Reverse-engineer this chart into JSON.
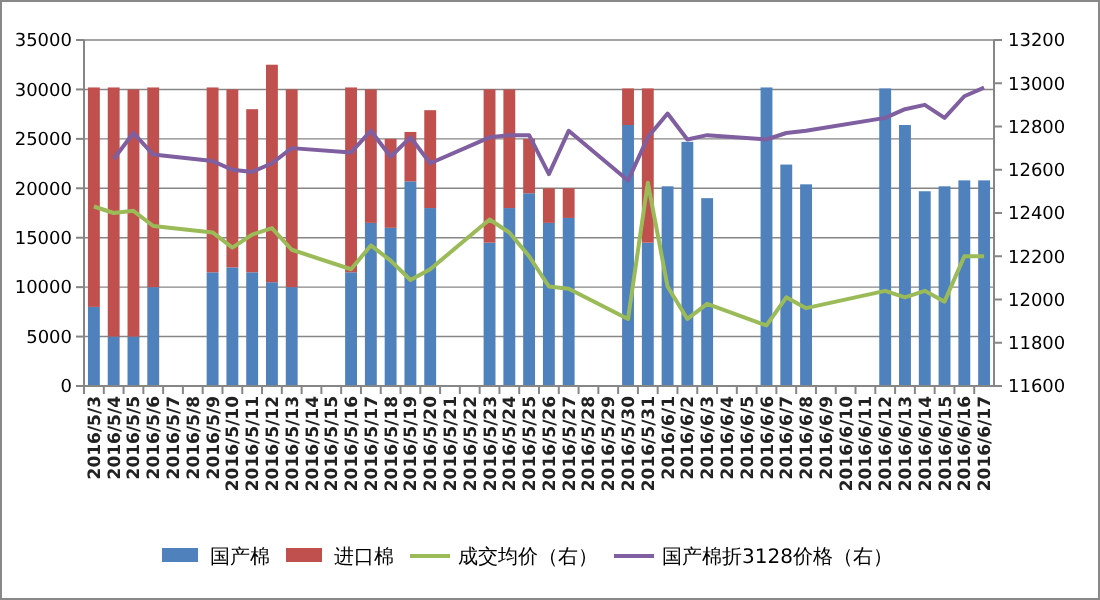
{
  "chart_data": {
    "type": "bar",
    "stacked": true,
    "categories": [
      "2016/5/3",
      "2016/5/4",
      "2016/5/5",
      "2016/5/6",
      "2016/5/7",
      "2016/5/8",
      "2016/5/9",
      "2016/5/10",
      "2016/5/11",
      "2016/5/12",
      "2016/5/13",
      "2016/5/14",
      "2016/5/15",
      "2016/5/16",
      "2016/5/17",
      "2016/5/18",
      "2016/5/19",
      "2016/5/20",
      "2016/5/21",
      "2016/5/22",
      "2016/5/23",
      "2016/5/24",
      "2016/5/25",
      "2016/5/26",
      "2016/5/27",
      "2016/5/28",
      "2016/5/29",
      "2016/5/30",
      "2016/5/31",
      "2016/6/1",
      "2016/6/2",
      "2016/6/3",
      "2016/6/4",
      "2016/6/5",
      "2016/6/6",
      "2016/6/7",
      "2016/6/8",
      "2016/6/9",
      "2016/6/10",
      "2016/6/11",
      "2016/6/12",
      "2016/6/13",
      "2016/6/14",
      "2016/6/15",
      "2016/6/16",
      "2016/6/17"
    ],
    "series": [
      {
        "name": "国产棉",
        "color": "#4f81bd",
        "values": [
          8000,
          5000,
          5000,
          10000,
          null,
          null,
          11500,
          12000,
          11500,
          10500,
          10000,
          null,
          null,
          11500,
          16500,
          16000,
          20700,
          18000,
          null,
          null,
          14500,
          18000,
          19500,
          16500,
          17000,
          null,
          null,
          26400,
          14500,
          20200,
          24700,
          19000,
          null,
          null,
          30200,
          22400,
          20400,
          null,
          null,
          null,
          30100,
          26400,
          19700,
          20200,
          20800,
          20800
        ]
      },
      {
        "name": "进口棉",
        "color": "#c0504d",
        "values": [
          22200,
          25200,
          25000,
          20200,
          null,
          null,
          18700,
          18000,
          16500,
          22000,
          20000,
          null,
          null,
          18700,
          13500,
          9000,
          5000,
          9900,
          null,
          null,
          15500,
          12000,
          5500,
          3500,
          3000,
          null,
          null,
          3700,
          15600,
          null,
          null,
          null,
          null,
          null,
          null,
          null,
          null,
          null,
          null,
          null,
          null,
          null,
          null,
          null,
          null,
          null
        ]
      },
      {
        "name": "成交均价（右）",
        "type": "line",
        "axis": "y2",
        "color": "#9bbb59",
        "values": [
          12430,
          12400,
          12410,
          12340,
          null,
          null,
          12310,
          12240,
          12300,
          12330,
          12230,
          null,
          null,
          12140,
          12250,
          12180,
          12090,
          12140,
          null,
          null,
          12370,
          12310,
          12200,
          12060,
          12050,
          null,
          null,
          11910,
          12540,
          12060,
          11910,
          11980,
          null,
          null,
          11880,
          12010,
          11960,
          null,
          null,
          null,
          12040,
          12010,
          12040,
          11990,
          12200,
          12200
        ]
      },
      {
        "name": "国产棉折3128价格（右）",
        "type": "line",
        "axis": "y2",
        "color": "#7f5fa0",
        "values": [
          null,
          12650,
          12770,
          12670,
          null,
          null,
          12640,
          12600,
          12590,
          12630,
          12700,
          null,
          null,
          12680,
          12780,
          12660,
          12750,
          12630,
          null,
          null,
          12750,
          12760,
          12760,
          12580,
          12780,
          null,
          null,
          12550,
          12750,
          12860,
          12740,
          12760,
          null,
          null,
          12740,
          12770,
          12780,
          null,
          null,
          null,
          12840,
          12880,
          12900,
          12840,
          12940,
          12980
        ]
      }
    ],
    "ylim": [
      0,
      35000
    ],
    "yticks": [
      0,
      5000,
      10000,
      15000,
      20000,
      25000,
      30000,
      35000
    ],
    "y2lim": [
      11600,
      13200
    ],
    "y2ticks": [
      11600,
      11800,
      12000,
      12200,
      12400,
      12600,
      12800,
      13000,
      13200
    ],
    "grid": "y",
    "legend": "bottom",
    "marker": "none",
    "line_style": "solid"
  }
}
